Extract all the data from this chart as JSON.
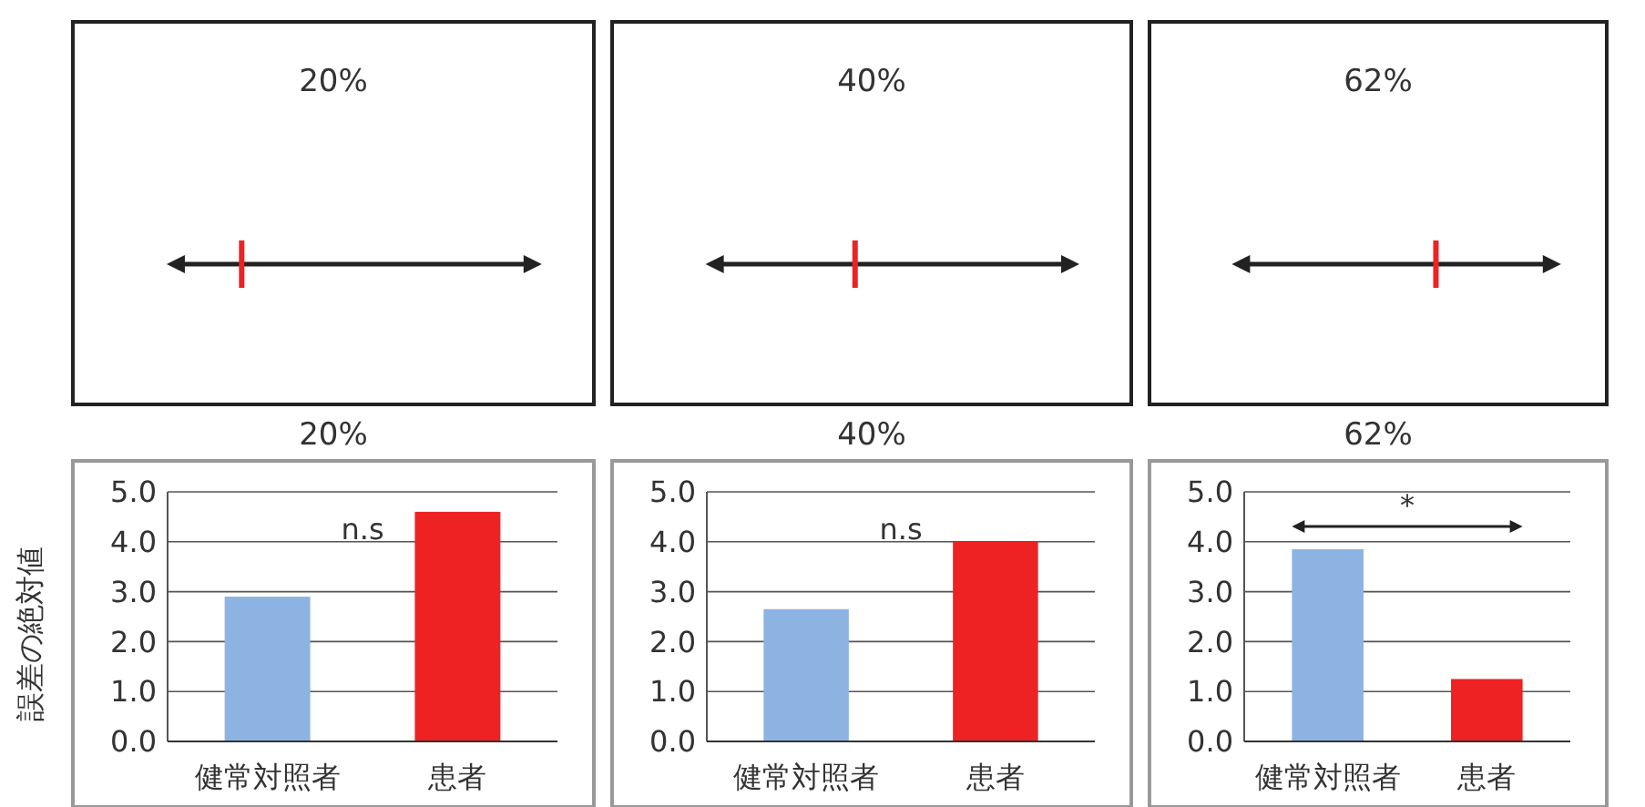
{
  "chart_data": [
    {
      "type": "other",
      "categories": [
        null
      ],
      "values": [
        20
      ],
      "value_labels": [
        "20%"
      ],
      "color": "#ee2222"
    },
    {
      "type": "other",
      "categories": [
        null
      ],
      "values": [
        40
      ],
      "value_labels": [
        "40%"
      ],
      "color": "#ee2222"
    },
    {
      "type": "other",
      "categories": [
        null
      ],
      "values": [
        62
      ],
      "value_labels": [
        "62%"
      ],
      "color": "#ee2222"
    },
    {
      "type": "bar",
      "title": "20%",
      "ylabel": "誤差の絶対値",
      "categories": [
        "健常対照者",
        "患者"
      ],
      "values": [
        2.9,
        4.6
      ],
      "colors": [
        "#8db3e2",
        "#ee2222"
      ],
      "ylim": [
        0,
        5
      ],
      "yticks": [
        {
          "value": 0,
          "label": "0.0"
        },
        {
          "value": 1,
          "label": "1.0"
        },
        {
          "value": 2,
          "label": "2.0"
        },
        {
          "value": 3,
          "label": "3.0"
        },
        {
          "value": 4,
          "label": "4.0"
        },
        {
          "value": 5,
          "label": "5.0"
        }
      ],
      "grid": "y",
      "annotations": [
        "n.s"
      ]
    },
    {
      "type": "bar",
      "title": "40%",
      "categories": [
        "健常対照者",
        "患者"
      ],
      "values": [
        2.65,
        4.0
      ],
      "colors": [
        "#8db3e2",
        "#ee2222"
      ],
      "ylim": [
        0,
        5
      ],
      "yticks": [
        {
          "value": 0,
          "label": "0.0"
        },
        {
          "value": 1,
          "label": "1.0"
        },
        {
          "value": 2,
          "label": "2.0"
        },
        {
          "value": 3,
          "label": "3.0"
        },
        {
          "value": 4,
          "label": "4.0"
        },
        {
          "value": 5,
          "label": "5.0"
        }
      ],
      "grid": "y",
      "annotations": [
        "n.s"
      ]
    },
    {
      "type": "bar",
      "title": "62%",
      "categories": [
        "健常対照者",
        "患者"
      ],
      "values": [
        3.85,
        1.25
      ],
      "colors": [
        "#8db3e2",
        "#ee2222"
      ],
      "ylim": [
        0,
        5
      ],
      "yticks": [
        {
          "value": 0,
          "label": "0.0"
        },
        {
          "value": 1,
          "label": "1.0"
        },
        {
          "value": 2,
          "label": "2.0"
        },
        {
          "value": 3,
          "label": "3.0"
        },
        {
          "value": 4,
          "label": "4.0"
        },
        {
          "value": 5,
          "label": "5.0"
        }
      ],
      "grid": "y",
      "annotations": [
        "*"
      ]
    }
  ]
}
